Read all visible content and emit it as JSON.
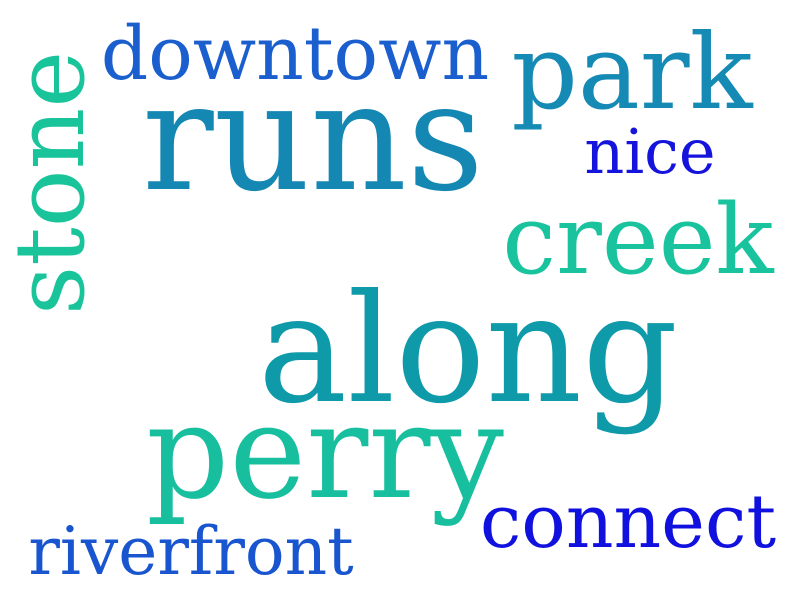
{
  "words": {
    "downtown": "downtown",
    "park": "park",
    "runs": "runs",
    "nice": "nice",
    "stone": "stone",
    "creek": "creek",
    "along": "along",
    "perry": "perry",
    "connect": "connect",
    "riverfront": "riverfront"
  },
  "colors": {
    "downtown": "#1b5fcf",
    "park": "#158ab5",
    "runs": "#1487b3",
    "nice": "#1414dc",
    "stone": "#19c49a",
    "creek": "#19c39d",
    "along": "#0e9aa8",
    "perry": "#18bf9f",
    "connect": "#1111df",
    "riverfront": "#1955cf"
  },
  "orientation": {
    "stone": "vertical"
  }
}
